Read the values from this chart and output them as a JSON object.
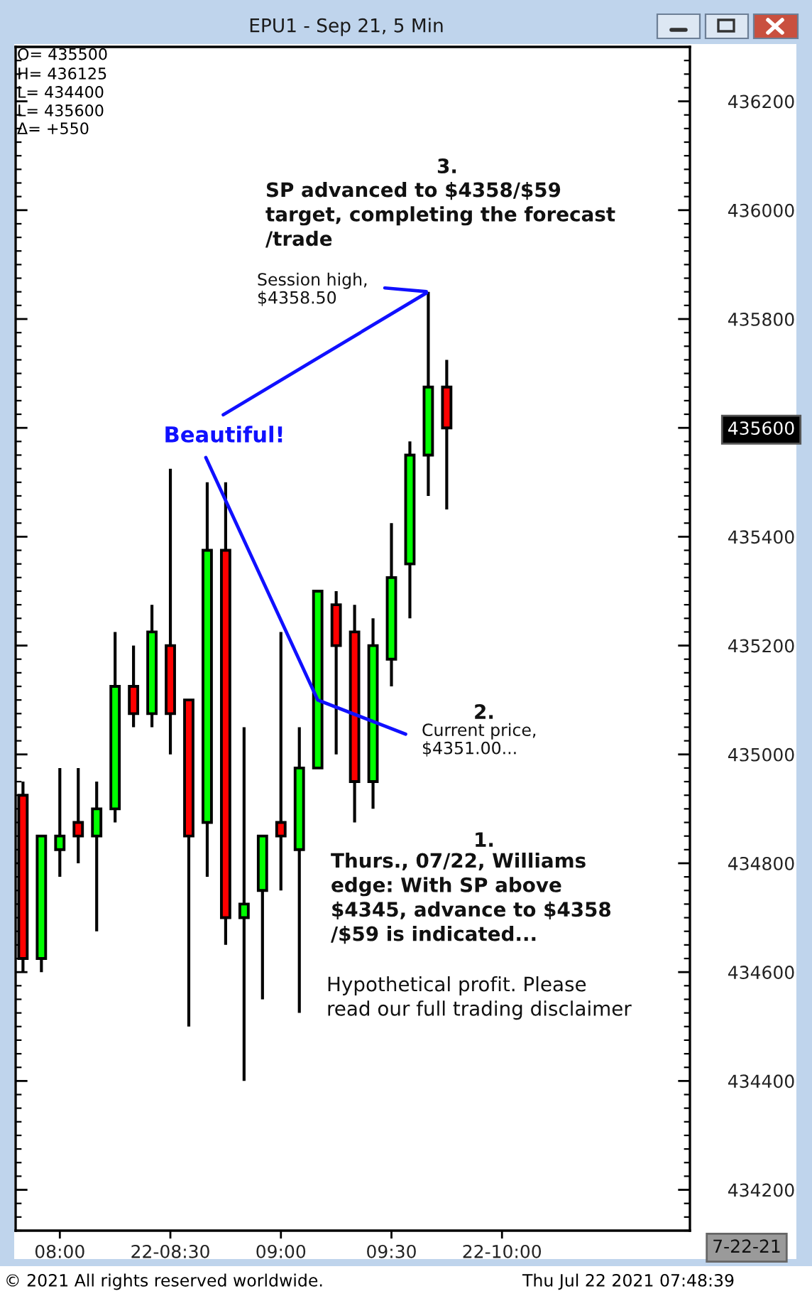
{
  "chart_data": {
    "type": "candlestick",
    "title": "EPU1 - Sep 21, 5 Min",
    "x": [
      "2021-07-22T07:50",
      "2021-07-22T07:55",
      "2021-07-22T08:00",
      "2021-07-22T08:05",
      "2021-07-22T08:10",
      "2021-07-22T08:15",
      "2021-07-22T08:20",
      "2021-07-22T08:25",
      "2021-07-22T08:30",
      "2021-07-22T08:35",
      "2021-07-22T08:40",
      "2021-07-22T08:45",
      "2021-07-22T08:50",
      "2021-07-22T08:55",
      "2021-07-22T09:00",
      "2021-07-22T09:05",
      "2021-07-22T09:10",
      "2021-07-22T09:15",
      "2021-07-22T09:20",
      "2021-07-22T09:25",
      "2021-07-22T09:30",
      "2021-07-22T09:35",
      "2021-07-22T09:40",
      "2021-07-22T09:45"
    ],
    "ohlc": [
      [
        434925,
        434950,
        434600,
        434625
      ],
      [
        434625,
        434850,
        434600,
        434850
      ],
      [
        434825,
        434975,
        434775,
        434850
      ],
      [
        434875,
        434975,
        434800,
        434850
      ],
      [
        434850,
        434950,
        434675,
        434900
      ],
      [
        434900,
        435225,
        434875,
        435125
      ],
      [
        435125,
        435200,
        435050,
        435075
      ],
      [
        435075,
        435275,
        435050,
        435225
      ],
      [
        435200,
        435525,
        435000,
        435075
      ],
      [
        435100,
        435100,
        434500,
        434850
      ],
      [
        434875,
        435500,
        434775,
        435375
      ],
      [
        435375,
        435500,
        434650,
        434700
      ],
      [
        434700,
        435050,
        434400,
        434725
      ],
      [
        434750,
        434850,
        434550,
        434850
      ],
      [
        434875,
        435225,
        434750,
        434850
      ],
      [
        434825,
        435050,
        434525,
        434975
      ],
      [
        434975,
        435300,
        434975,
        435300
      ],
      [
        435275,
        435300,
        435000,
        435200
      ],
      [
        435225,
        435275,
        434875,
        434950
      ],
      [
        434950,
        435250,
        434900,
        435200
      ],
      [
        435175,
        435425,
        435125,
        435325
      ],
      [
        435350,
        435575,
        435250,
        435550
      ],
      [
        435550,
        435850,
        435475,
        435675
      ],
      [
        435675,
        435725,
        435450,
        435600
      ]
    ],
    "colors": [
      "#ff0000",
      "#00ff00",
      "#00ff00",
      "#ff0000",
      "#00ff00",
      "#00ff00",
      "#ff0000",
      "#00ff00",
      "#ff0000",
      "#ff0000",
      "#00ff00",
      "#ff0000",
      "#00ff00",
      "#00ff00",
      "#ff0000",
      "#00ff00",
      "#00ff00",
      "#ff0000",
      "#ff0000",
      "#00ff00",
      "#00ff00",
      "#00ff00",
      "#00ff00",
      "#ff0000"
    ],
    "xlim": [
      "2021-07-22T07:48",
      "2021-07-22T10:51"
    ],
    "xticks": [
      {
        "value": "2021-07-22T08:00",
        "label": "08:00"
      },
      {
        "value": "2021-07-22T08:30",
        "label": "22-08:30"
      },
      {
        "value": "2021-07-22T09:00",
        "label": "09:00"
      },
      {
        "value": "2021-07-22T09:30",
        "label": "09:30"
      },
      {
        "value": "2021-07-22T10:00",
        "label": "22-10:00"
      }
    ],
    "ylim": [
      434125,
      436300
    ],
    "yticks": [
      434200,
      434400,
      434600,
      434800,
      435000,
      435200,
      435400,
      435600,
      435800,
      436000,
      436200
    ],
    "annotations": [
      "O= 435500",
      "H= 436125",
      "L= 434400",
      "L= 435600",
      "Δ= +550",
      "3.",
      "SP advanced to $4358/$59\ntarget, completing the forecast\n/trade",
      {
        "text": "Session high,\n$4358.50",
        "x": "2021-07-22T09:40",
        "y": 435850
      },
      {
        "text": "Beautiful!",
        "x": "2021-07-22T09:40",
        "y": 435850
      },
      "2.",
      {
        "text": "Current price,\n$4351.00...",
        "x": "2021-07-22T09:10",
        "y": 435100
      },
      "1.",
      "Thurs., 07/22, Williams\nedge: With SP above\n$4345, advance to $4358\n/$59 is indicated...",
      "Hypothetical profit. Please\nread our full trading disclaimer",
      "7-22-21",
      "© 2021 All rights reserved worldwide.",
      "Thu Jul 22 2021 07:48:39"
    ]
  }
}
